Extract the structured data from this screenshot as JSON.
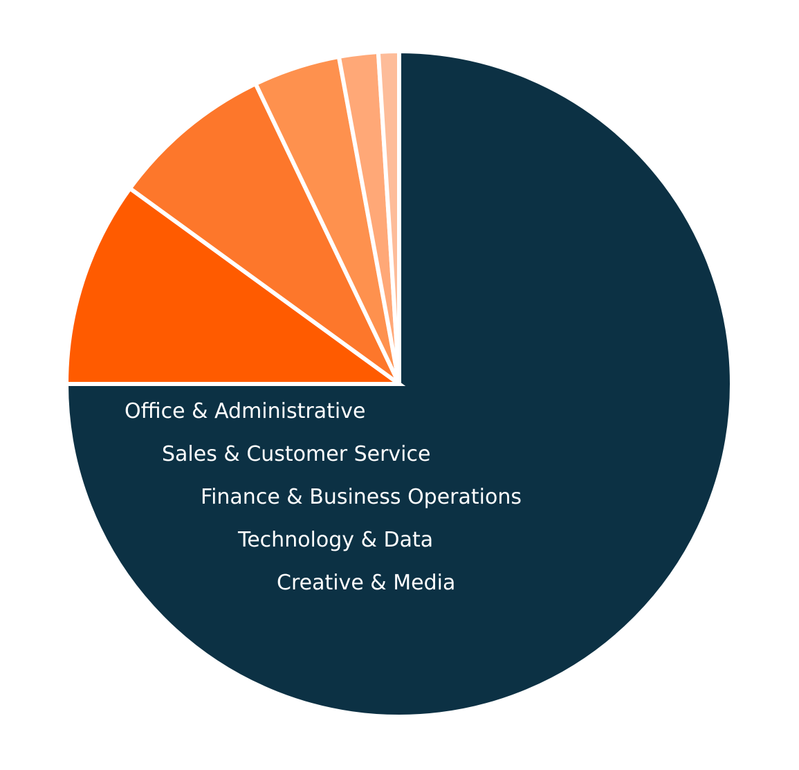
{
  "chart_data": {
    "type": "pie",
    "title": "",
    "start_angle_deg": 0,
    "direction": "clockwise",
    "categories": [
      "",
      "Office & Administrative",
      "Sales & Customer Service",
      "Finance & Business Operations",
      "Technology & Data",
      "Creative & Media"
    ],
    "values": [
      75,
      10,
      7.9,
      4.2,
      1.9,
      1.0
    ],
    "colors": [
      "#0c3144",
      "#ff5b00",
      "#fd772b",
      "#fe914e",
      "#ffa877",
      "#fdbc99"
    ],
    "legend": {
      "placement": "inside-bottom-slice",
      "entries": [
        "Office & Administrative",
        "Sales & Customer Service",
        "Finance & Business Operations",
        "Technology & Data",
        "Creative & Media"
      ]
    }
  }
}
